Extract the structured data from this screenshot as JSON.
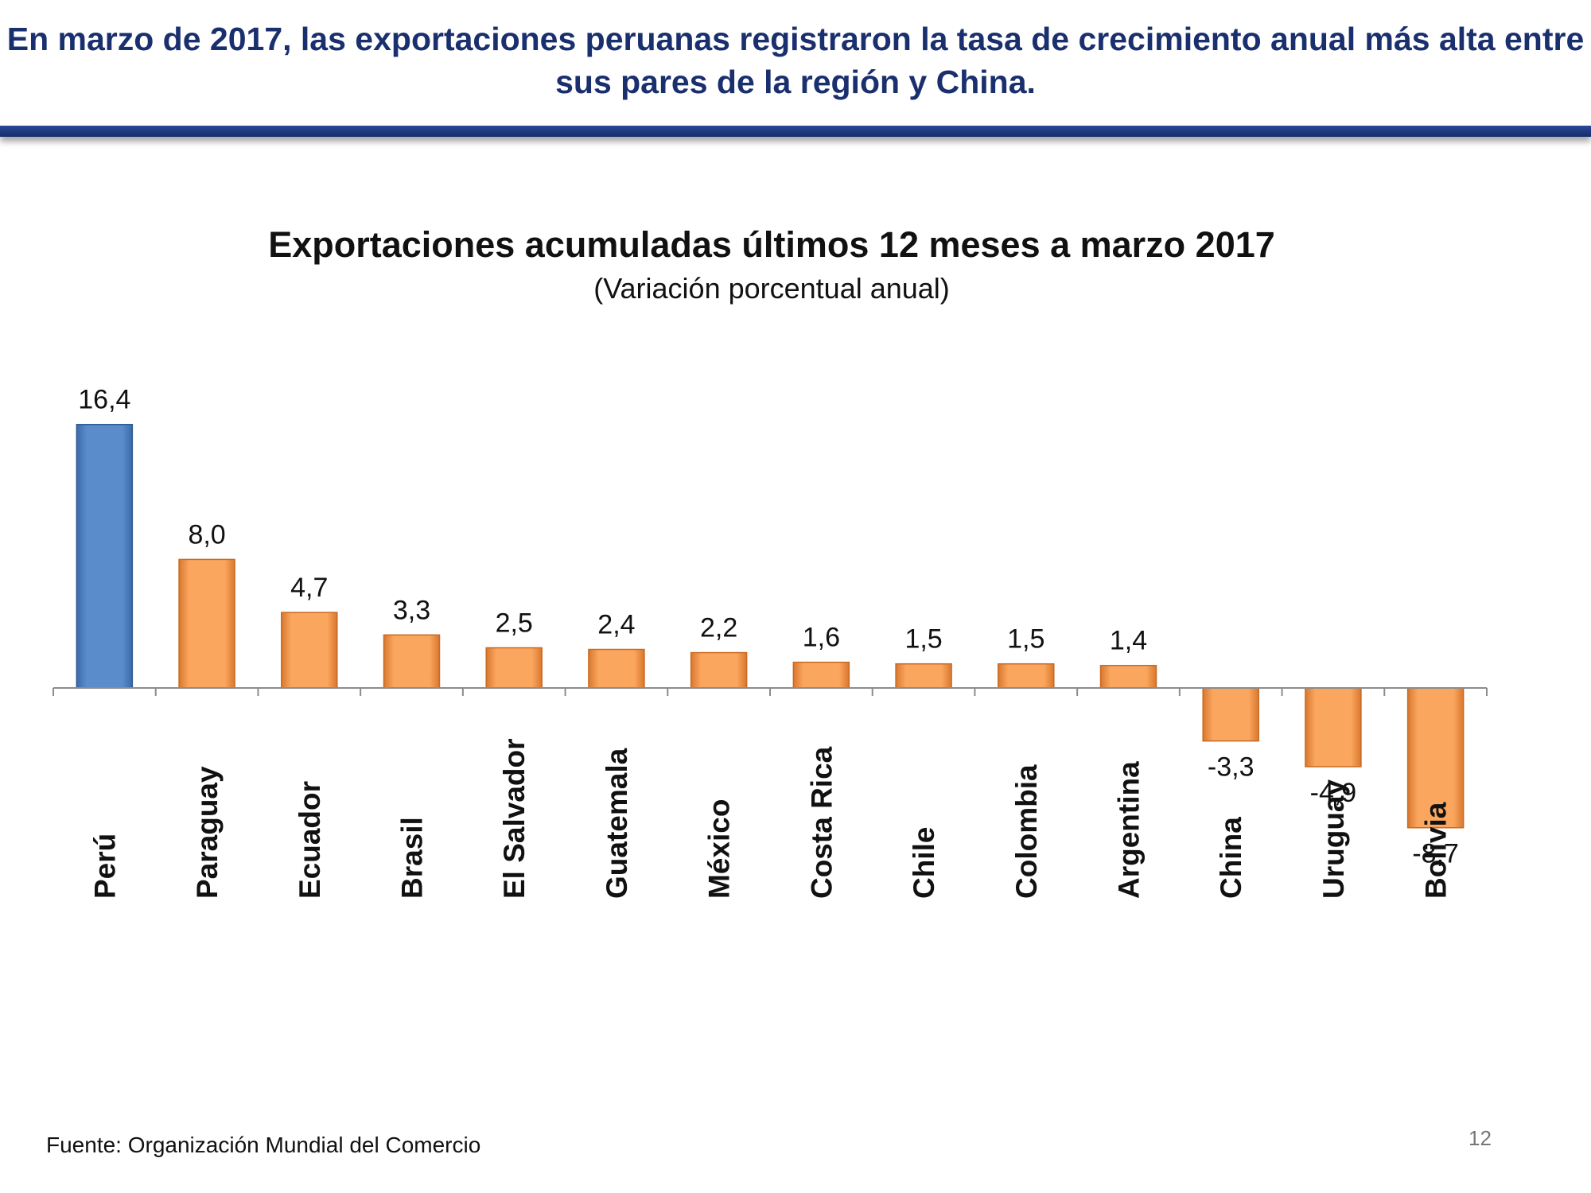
{
  "header": {
    "headline": "En marzo de 2017, las exportaciones peruanas registraron la tasa de crecimiento anual más alta entre sus pares de la región y China."
  },
  "colors": {
    "highlight": "#4f81bd",
    "bar": "#f79646",
    "header_text": "#1a2f6e",
    "header_rule": "#1f3a82"
  },
  "chart_data": {
    "type": "bar",
    "title": "Exportaciones acumuladas últimos 12 meses a marzo 2017",
    "subtitle": "(Variación porcentual anual)",
    "xlabel": "",
    "ylabel": "",
    "categories": [
      "Perú",
      "Paraguay",
      "Ecuador",
      "Brasil",
      "El Salvador",
      "Guatemala",
      "México",
      "Costa Rica",
      "Chile",
      "Colombia",
      "Argentina",
      "China",
      "Uruguay",
      "Bolivia"
    ],
    "values": [
      16.4,
      8.0,
      4.7,
      3.3,
      2.5,
      2.4,
      2.2,
      1.6,
      1.5,
      1.5,
      1.4,
      -3.3,
      -4.9,
      -8.7
    ],
    "value_labels": [
      "16,4",
      "8,0",
      "4,7",
      "3,3",
      "2,5",
      "2,4",
      "2,2",
      "1,6",
      "1,5",
      "1,5",
      "1,4",
      "-3,3",
      "-4,9",
      "-8,7"
    ],
    "highlighted": [
      "Perú"
    ],
    "ylim": [
      -8.7,
      16.4
    ],
    "grid": false,
    "legend": "none"
  },
  "footer": {
    "source": "Fuente: Organización Mundial del Comercio",
    "page_number": "12"
  }
}
